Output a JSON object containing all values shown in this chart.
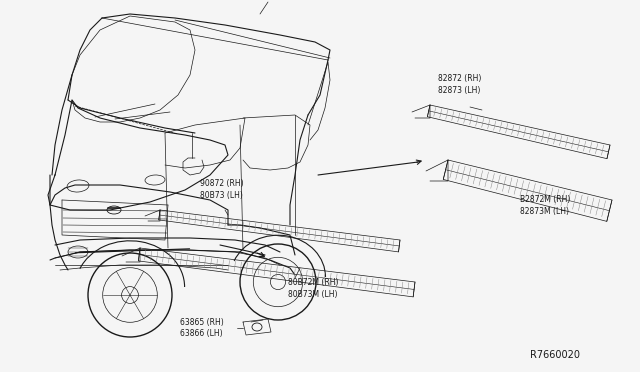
{
  "bg_color": "#f5f5f5",
  "diagram_id": "R7660020",
  "label_82872": "82872 (RH)\n82873 (LH)",
  "label_B2872M": "B2872M (RH)\n82873M (LH)",
  "label_90872": "90872 (RH)\n80B73 (LH)",
  "label_80B72M": "80B72M (RH)\n80B73M (LH)",
  "label_63865": "63865 (RH)\n63866 (LH)",
  "line_color": "#1a1a1a",
  "font_family": "DejaVu Sans",
  "font_size": 5.5,
  "diagram_id_fontsize": 7.0,
  "arrow_color": "#1a1a1a",
  "hatch_color": "#555555"
}
